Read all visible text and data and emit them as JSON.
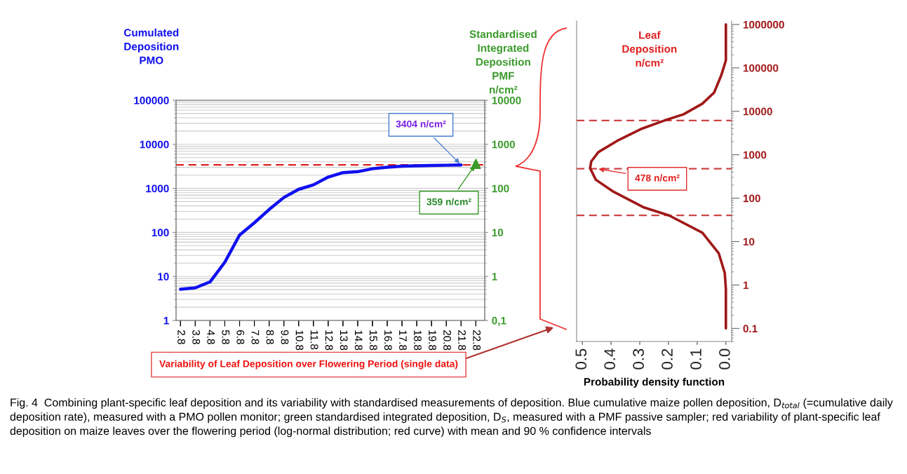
{
  "chart_data": [
    {
      "type": "line",
      "ylabel": "Cumulated\nDeposition\nPMO",
      "categories": [
        "2.8",
        "3.8",
        "4.8",
        "5.8",
        "6.8",
        "7.8",
        "8.8",
        "9.8",
        "10.8",
        "11.8",
        "12.8",
        "13.8",
        "14.8",
        "15.8",
        "16.8",
        "17.8",
        "18.8",
        "19.8",
        "20.8",
        "21.8",
        "22.8"
      ],
      "series": [
        {
          "color": "#1010f0",
          "values": [
            5.1,
            5.5,
            7.5,
            21,
            87,
            165,
            330,
            620,
            950,
            1200,
            1800,
            2270,
            2390,
            2790,
            3020,
            3180,
            3250,
            3300,
            3350,
            3404,
            null
          ]
        }
      ],
      "log": "y",
      "ylim": [
        1,
        100000
      ],
      "yticks": [
        1,
        10,
        100,
        1000,
        10000,
        100000
      ],
      "grid": "y",
      "ref_lines": [
        {
          "axis": "y",
          "value": 3404,
          "color": "#e02020",
          "line_style": "dashed"
        }
      ],
      "annotations": [
        {
          "text": "3404 n/cm²",
          "x": "21.8",
          "y": 3404
        },
        "Variability of Leaf Deposition over Flowering Period (single data)",
        "Fig. 4  Combining plant-specific leaf deposition and its variability with standardised measurements of deposition. Blue cumulative maize pollen deposition, D$_{total}$ (=cumulative daily deposition rate), measured with a PMO pollen monitor; green standardised integrated deposition, D$_{S}$, measured with a PMF passive sampler; red variability of plant-specific leaf deposition on maize leaves over the flowering period (log-normal distribution; red curve) with mean and 90 % confidence intervals"
      ]
    },
    {
      "type": "scatter",
      "ylabel": "Standardised\nIntegrated\nDeposition\nPMF\nn/cm²",
      "categories": [
        "2.8",
        "3.8",
        "4.8",
        "5.8",
        "6.8",
        "7.8",
        "8.8",
        "9.8",
        "10.8",
        "11.8",
        "12.8",
        "13.8",
        "14.8",
        "15.8",
        "16.8",
        "17.8",
        "18.8",
        "19.8",
        "20.8",
        "21.8",
        "22.8"
      ],
      "series": [
        {
          "color": "#3a9a2a",
          "values": [
            null,
            null,
            null,
            null,
            null,
            null,
            null,
            null,
            null,
            null,
            null,
            null,
            null,
            null,
            null,
            null,
            null,
            null,
            null,
            null,
            359
          ]
        }
      ],
      "marker": "triangle",
      "log": "y",
      "ylim": [
        0.1,
        10000
      ],
      "yticks": [
        {
          "value": 0.1,
          "label": "0,1"
        },
        1,
        10,
        100,
        1000,
        10000
      ],
      "tick_labels": "y",
      "annotations": [
        {
          "text": "359 n/cm²",
          "x": "22.8",
          "y": 359
        }
      ]
    },
    {
      "type": "line",
      "ylabel": "Leaf\nDeposition\nn/cm²",
      "xlabel": "Probability density function",
      "series": [
        {
          "color": "#a01818",
          "x": [
            0.0,
            0.0,
            0.016,
            0.041,
            0.082,
            0.148,
            0.214,
            0.296,
            0.378,
            0.444,
            0.469,
            0.473,
            0.453,
            0.395,
            0.288,
            0.198,
            0.082,
            0.025,
            0.004,
            0.0,
            0.0
          ],
          "values": [
            1000000,
            150000,
            68000,
            27000,
            15000,
            8500,
            6150,
            3900,
            2100,
            1150,
            700,
            490,
            265,
            145,
            62,
            40,
            16,
            5.4,
            1.9,
            0.8,
            0.1
          ]
        }
      ],
      "log": "y",
      "xlim": [
        0.52,
        -0.02
      ],
      "xticks": [
        0.5,
        0.4,
        0.3,
        0.2,
        0.1,
        {
          "value": 0,
          "label": "0.0"
        }
      ],
      "ylim": [
        0.05,
        1200000
      ],
      "yticks": [
        0.1,
        1,
        10,
        100,
        1000,
        10000,
        100000,
        1000000
      ],
      "ref_lines": [
        {
          "axis": "y",
          "value": 6150,
          "color": "#cc4444",
          "line_style": "dashed"
        },
        {
          "axis": "y",
          "value": 478,
          "color": "#cc4444",
          "line_style": "dashed"
        },
        {
          "axis": "y",
          "value": 40,
          "color": "#cc4444",
          "line_style": "dashed"
        }
      ],
      "annotations": [
        {
          "text": "478 n/cm²",
          "x": 0.45,
          "y": 478
        }
      ]
    }
  ]
}
